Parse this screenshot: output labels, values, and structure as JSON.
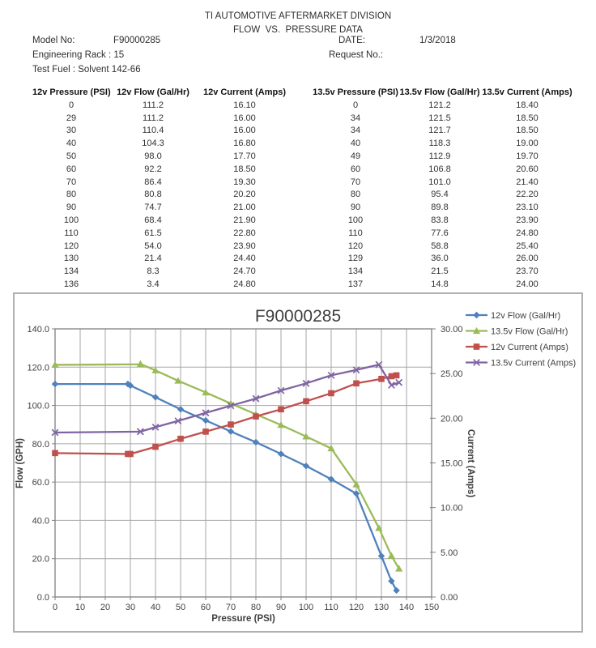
{
  "document": {
    "title_line1": "TI AUTOMOTIVE AFTERMARKET DIVISION",
    "title_line2": "FLOW  VS.  PRESSURE DATA",
    "fields": {
      "model_label": "Model No:",
      "model_value": "F90000285",
      "date_label": "DATE:",
      "date_value": "1/3/2018",
      "rack_line": "Engineering Rack : 15",
      "request_label": "Request No.:",
      "fuel_line": "Test Fuel : Solvent 142-66"
    }
  },
  "table": {
    "headers": [
      "12v Pressure (PSI)",
      "12v Flow (Gal/Hr)",
      "12v Current (Amps)",
      "13.5v Pressure (PSI)",
      "13.5v Flow (Gal/Hr)",
      "13.5v Current (Amps)"
    ],
    "rows": [
      [
        "0",
        "111.2",
        "16.10",
        "0",
        "121.2",
        "18.40"
      ],
      [
        "29",
        "111.2",
        "16.00",
        "34",
        "121.5",
        "18.50"
      ],
      [
        "30",
        "110.4",
        "16.00",
        "34",
        "121.7",
        "18.50"
      ],
      [
        "40",
        "104.3",
        "16.80",
        "40",
        "118.3",
        "19.00"
      ],
      [
        "50",
        "98.0",
        "17.70",
        "49",
        "112.9",
        "19.70"
      ],
      [
        "60",
        "92.2",
        "18.50",
        "60",
        "106.8",
        "20.60"
      ],
      [
        "70",
        "86.4",
        "19.30",
        "70",
        "101.0",
        "21.40"
      ],
      [
        "80",
        "80.8",
        "20.20",
        "80",
        "95.4",
        "22.20"
      ],
      [
        "90",
        "74.7",
        "21.00",
        "90",
        "89.8",
        "23.10"
      ],
      [
        "100",
        "68.4",
        "21.90",
        "100",
        "83.8",
        "23.90"
      ],
      [
        "110",
        "61.5",
        "22.80",
        "110",
        "77.6",
        "24.80"
      ],
      [
        "120",
        "54.0",
        "23.90",
        "120",
        "58.8",
        "25.40"
      ],
      [
        "130",
        "21.4",
        "24.40",
        "129",
        "36.0",
        "26.00"
      ],
      [
        "134",
        "8.3",
        "24.70",
        "134",
        "21.5",
        "23.70"
      ],
      [
        "136",
        "3.4",
        "24.80",
        "137",
        "14.8",
        "24.00"
      ]
    ]
  },
  "chart_data": {
    "type": "line",
    "title": "F90000285",
    "xlabel": "Pressure (PSI)",
    "ylabel_left": "Flow (GPH)",
    "ylabel_right": "Current (Amps)",
    "xlim": [
      0,
      150
    ],
    "ylim_left": [
      0,
      140
    ],
    "ylim_right": [
      0,
      30
    ],
    "xticks": [
      "0",
      "10",
      "20",
      "30",
      "40",
      "50",
      "60",
      "70",
      "80",
      "90",
      "100",
      "110",
      "120",
      "130",
      "140",
      "150"
    ],
    "yticks_left": [
      "0.0",
      "20.0",
      "40.0",
      "60.0",
      "80.0",
      "100.0",
      "120.0",
      "140.0"
    ],
    "yticks_right": [
      "0.00",
      "5.00",
      "10.00",
      "15.00",
      "20.00",
      "25.00",
      "30.00"
    ],
    "grid": true,
    "legend_position": "top-right",
    "colors": {
      "grid": "#a6a6a6",
      "axis": "#808080",
      "text": "#3f3f3f"
    },
    "series": [
      {
        "name": "12v Flow (Gal/Hr)",
        "axis": "left",
        "color": "#4f81bd",
        "marker": "diamond",
        "x": [
          0,
          29,
          30,
          40,
          50,
          60,
          70,
          80,
          90,
          100,
          110,
          120,
          130,
          134,
          136
        ],
        "y": [
          111.2,
          111.2,
          110.4,
          104.3,
          98.0,
          92.2,
          86.4,
          80.8,
          74.7,
          68.4,
          61.5,
          54.0,
          21.4,
          8.3,
          3.4
        ]
      },
      {
        "name": "13.5v Flow (Gal/Hr)",
        "axis": "left",
        "color": "#9bbb59",
        "marker": "triangle",
        "x": [
          0,
          34,
          34,
          40,
          49,
          60,
          70,
          80,
          90,
          100,
          110,
          120,
          129,
          134,
          137
        ],
        "y": [
          121.2,
          121.5,
          121.7,
          118.3,
          112.9,
          106.8,
          101.0,
          95.4,
          89.8,
          83.8,
          77.6,
          58.8,
          36.0,
          21.5,
          14.8
        ]
      },
      {
        "name": "12v Current (Amps)",
        "axis": "right",
        "color": "#c0504d",
        "marker": "square",
        "x": [
          0,
          29,
          30,
          40,
          50,
          60,
          70,
          80,
          90,
          100,
          110,
          120,
          130,
          134,
          136
        ],
        "y": [
          16.1,
          16.0,
          16.0,
          16.8,
          17.7,
          18.5,
          19.3,
          20.2,
          21.0,
          21.9,
          22.8,
          23.9,
          24.4,
          24.7,
          24.8
        ]
      },
      {
        "name": "13.5v Current (Amps)",
        "axis": "right",
        "color": "#8064a2",
        "marker": "x",
        "x": [
          0,
          34,
          34,
          40,
          49,
          60,
          70,
          80,
          90,
          100,
          110,
          120,
          129,
          134,
          137
        ],
        "y": [
          18.4,
          18.5,
          18.5,
          19.0,
          19.7,
          20.6,
          21.4,
          22.2,
          23.1,
          23.9,
          24.8,
          25.4,
          26.0,
          23.7,
          24.0
        ]
      }
    ]
  }
}
